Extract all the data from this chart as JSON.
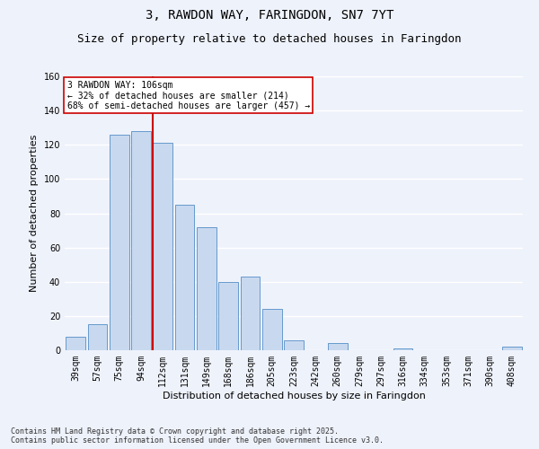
{
  "title": "3, RAWDON WAY, FARINGDON, SN7 7YT",
  "subtitle": "Size of property relative to detached houses in Faringdon",
  "xlabel": "Distribution of detached houses by size in Faringdon",
  "ylabel": "Number of detached properties",
  "categories": [
    "39sqm",
    "57sqm",
    "75sqm",
    "94sqm",
    "112sqm",
    "131sqm",
    "149sqm",
    "168sqm",
    "186sqm",
    "205sqm",
    "223sqm",
    "242sqm",
    "260sqm",
    "279sqm",
    "297sqm",
    "316sqm",
    "334sqm",
    "353sqm",
    "371sqm",
    "390sqm",
    "408sqm"
  ],
  "values": [
    8,
    15,
    126,
    128,
    121,
    85,
    72,
    40,
    43,
    24,
    6,
    0,
    4,
    0,
    0,
    1,
    0,
    0,
    0,
    0,
    2
  ],
  "bar_color": "#c8d9ef",
  "bar_edge_color": "#6699cc",
  "background_color": "#eef2fb",
  "grid_color": "#ffffff",
  "vline_x_index": 4,
  "vline_color": "#cc0000",
  "annotation_text": "3 RAWDON WAY: 106sqm\n← 32% of detached houses are smaller (214)\n68% of semi-detached houses are larger (457) →",
  "annotation_box_color": "#ffffff",
  "annotation_box_edge_color": "#cc0000",
  "ylim": [
    0,
    160
  ],
  "yticks": [
    0,
    20,
    40,
    60,
    80,
    100,
    120,
    140,
    160
  ],
  "footer": "Contains HM Land Registry data © Crown copyright and database right 2025.\nContains public sector information licensed under the Open Government Licence v3.0.",
  "title_fontsize": 10,
  "subtitle_fontsize": 9,
  "annotation_fontsize": 7,
  "footer_fontsize": 6,
  "tick_fontsize": 7,
  "ylabel_fontsize": 8,
  "xlabel_fontsize": 8
}
